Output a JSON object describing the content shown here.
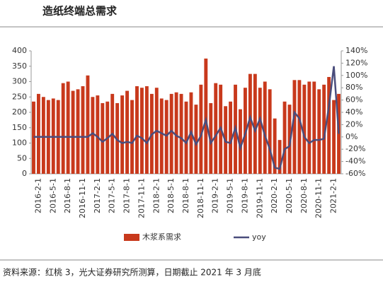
{
  "title": "造纸终端总需求",
  "chart_data": {
    "type": "bar_line",
    "categories": [
      null,
      "2016-2-1",
      null,
      null,
      "2016-5-1",
      null,
      null,
      "2016-8-1",
      null,
      null,
      "2016-11-1",
      null,
      null,
      "2017-2-1",
      null,
      null,
      "2017-5-1",
      null,
      null,
      "2017-8-1",
      null,
      null,
      "2017-11-1",
      null,
      null,
      "2018-2-1",
      null,
      null,
      "2018-5-1",
      null,
      null,
      "2018-8-1",
      null,
      null,
      "2018-11-1",
      null,
      null,
      "2019-2-1",
      null,
      null,
      "2019-5-1",
      null,
      null,
      "2019-8-1",
      null,
      null,
      "2019-11-1",
      null,
      null,
      "2020-2-1",
      null,
      null,
      "2020-5-1",
      null,
      null,
      "2020-8-1",
      null,
      null,
      "2020-11-1",
      null,
      null,
      "2021-2-1",
      null
    ],
    "series": [
      {
        "name": "木浆系需求",
        "type": "bar",
        "color": "#c8391c",
        "values": [
          235,
          260,
          250,
          240,
          245,
          240,
          295,
          300,
          270,
          275,
          285,
          320,
          250,
          255,
          230,
          235,
          260,
          230,
          255,
          270,
          240,
          285,
          280,
          285,
          260,
          280,
          245,
          240,
          260,
          265,
          260,
          235,
          265,
          225,
          290,
          375,
          230,
          295,
          290,
          220,
          235,
          290,
          210,
          280,
          325,
          325,
          280,
          300,
          275,
          180,
          110,
          235,
          225,
          305,
          305,
          290,
          300,
          300,
          275,
          290,
          315,
          240,
          260
        ]
      },
      {
        "name": "yoy",
        "type": "line",
        "axis": "y2",
        "color": "#4a4d7c",
        "values": [
          0,
          0,
          0,
          0,
          0,
          0,
          0,
          0,
          0,
          0,
          0,
          0,
          6,
          0,
          -8,
          -2,
          5,
          -5,
          -10,
          -8,
          -10,
          2,
          -2,
          -10,
          4,
          10,
          6,
          2,
          10,
          2,
          -2,
          -10,
          8,
          -12,
          2,
          28,
          -10,
          2,
          15,
          -8,
          -10,
          15,
          -18,
          5,
          32,
          10,
          30,
          2,
          -20,
          -50,
          -52,
          -20,
          -15,
          40,
          30,
          0,
          -10,
          -5,
          -5,
          -3,
          50,
          115,
          5
        ]
      }
    ],
    "ylim": [
      0,
      400
    ],
    "yticks": [
      0,
      50,
      100,
      150,
      200,
      250,
      300,
      350,
      400
    ],
    "y2lim": [
      -60,
      140
    ],
    "y2ticks": [
      {
        "value": -60,
        "label": "-60%"
      },
      {
        "value": -40,
        "label": "-40%"
      },
      {
        "value": -20,
        "label": "-20%"
      },
      {
        "value": 0,
        "label": "0%"
      },
      {
        "value": 20,
        "label": "20%"
      },
      {
        "value": 40,
        "label": "40%"
      },
      {
        "value": 60,
        "label": "60%"
      },
      {
        "value": 80,
        "label": "80%"
      },
      {
        "value": 100,
        "label": "100%"
      },
      {
        "value": 120,
        "label": "120%"
      },
      {
        "value": 140,
        "label": "140%"
      }
    ],
    "legend": "bottom"
  },
  "source": "资料来源：红桃 3，光大证券研究所测算，日期截止 2021 年 3 月底"
}
